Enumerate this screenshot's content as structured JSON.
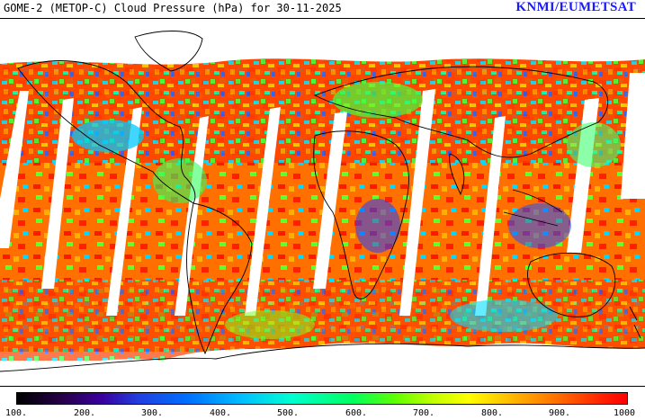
{
  "header": {
    "title": "GOME-2 (METOP-C) Cloud Pressure (hPa) for 30-11-2025",
    "credit": "KNMI/EUMETSAT"
  },
  "colorbar": {
    "ticks": [
      "100.",
      "200.",
      "300.",
      "400.",
      "500.",
      "600.",
      "700.",
      "800.",
      "900.",
      "1000"
    ],
    "colors": [
      "#000000",
      "#3a00a0",
      "#0070ff",
      "#00ffd0",
      "#60ff00",
      "#ffff00",
      "#ff6000",
      "#ff0000"
    ]
  }
}
